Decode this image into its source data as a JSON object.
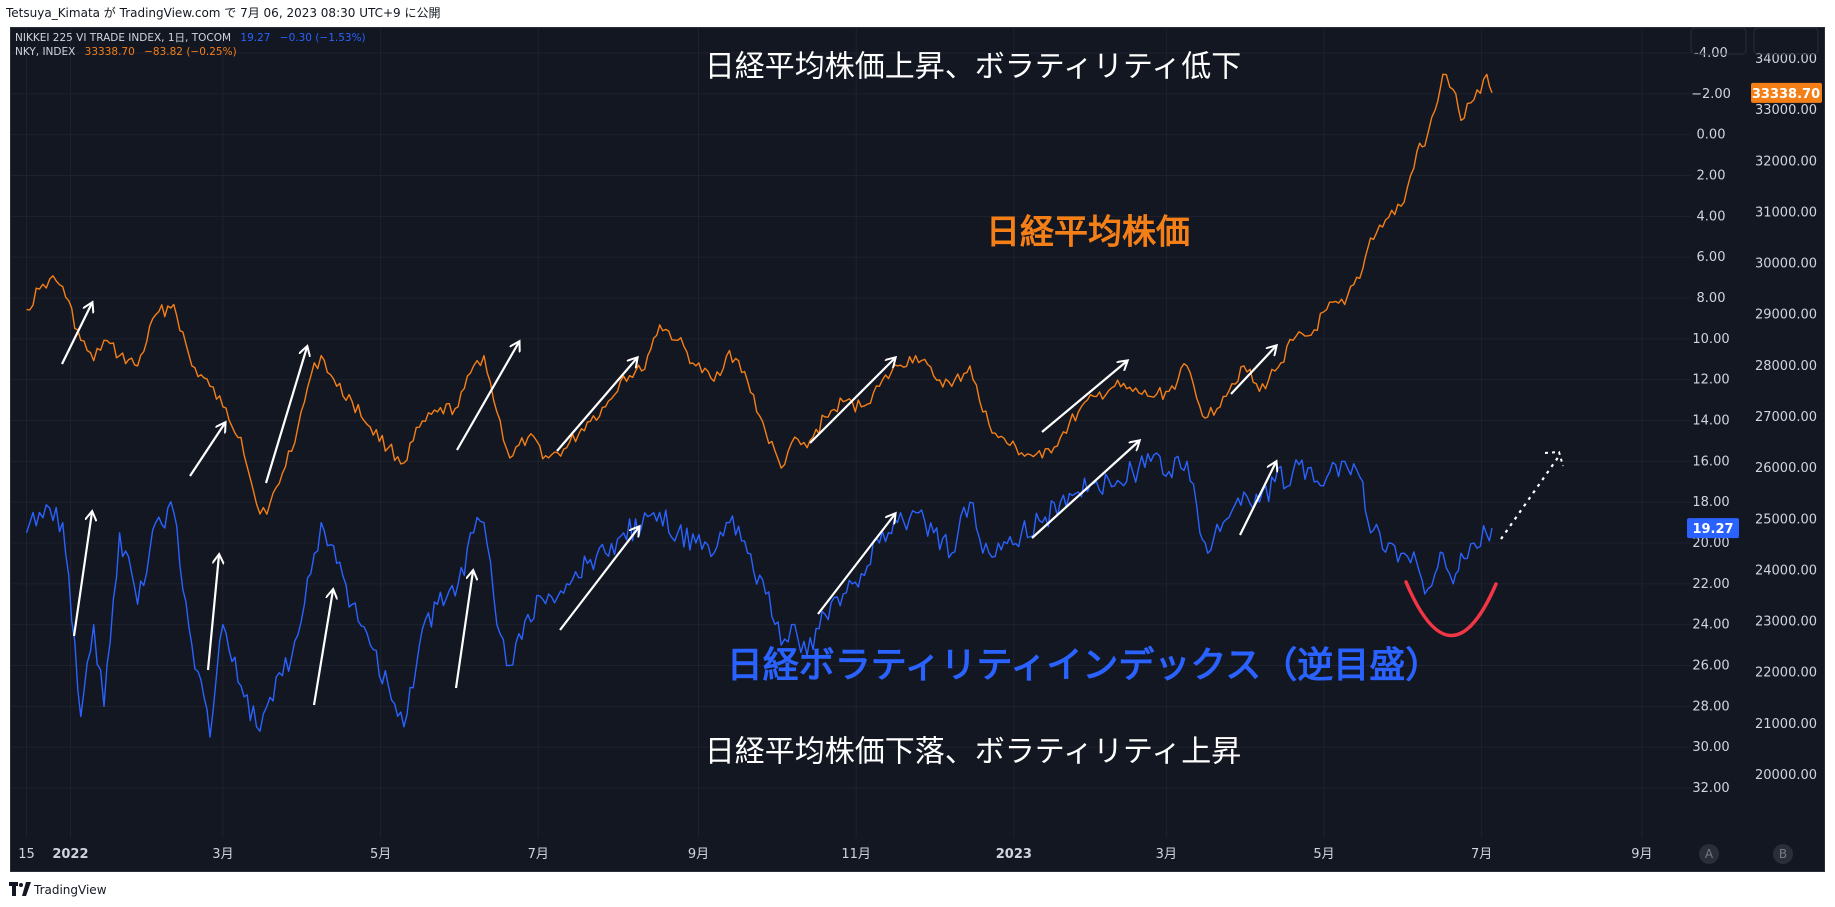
{
  "publish_bar": {
    "text": "Tetsuya_Kimata が TradingView.com で 7月 06, 2023 08:30 UTC+9 に公開"
  },
  "legend": {
    "vi": {
      "name": "NIKKEI 225 VI TRADE INDEX, 1日, TOCOM",
      "value": "19.27",
      "change": "−0.30 (−1.53%)",
      "color": "#2962ff"
    },
    "nky": {
      "name": "NKY, INDEX",
      "value": "33338.70",
      "change": "−83.82 (−0.25%)",
      "color": "#f57f17"
    }
  },
  "annotations": {
    "top": "日経平均株価上昇、ボラティリティ低下",
    "nikkei_label": "日経平均株価",
    "vi_label": "日経ボラティリティインデックス（逆目盛）",
    "bottom": "日経平均株価下落、ボラティリティ上昇"
  },
  "footer": {
    "brand": "TradingView",
    "logo": "tradingview-logo-icon"
  },
  "ab_buttons": [
    "A",
    "B"
  ],
  "colors": {
    "background": "#131722",
    "grid": "#1e222d",
    "nky": "#f57f17",
    "vi": "#2962ff",
    "arrow": "#ffffff",
    "u_curve": "#f23645"
  },
  "chart_data": {
    "type": "line",
    "x_ticks": [
      "15",
      "2022",
      "3月",
      "5月",
      "7月",
      "9月",
      "11月",
      "2023",
      "3月",
      "5月",
      "7月",
      "9月"
    ],
    "axis_vi": {
      "ticks": [
        "-4.00",
        "−2.00",
        "0.00",
        "2.00",
        "4.00",
        "6.00",
        "8.00",
        "10.00",
        "12.00",
        "14.00",
        "16.00",
        "18.00",
        "20.00",
        "22.00",
        "24.00",
        "26.00",
        "28.00",
        "30.00",
        "32.00"
      ],
      "range": [
        -4.0,
        32.0
      ],
      "inverted": true,
      "last_value": "19.27"
    },
    "axis_nky": {
      "ticks": [
        "34000.00",
        "33000.00",
        "32000.00",
        "31000.00",
        "30000.00",
        "29000.00",
        "28000.00",
        "27000.00",
        "26000.00",
        "25000.00",
        "24000.00",
        "23000.00",
        "22000.00",
        "21000.00",
        "20000.00"
      ],
      "range": [
        20000,
        34000
      ],
      "last_value": "33338.70"
    },
    "series": [
      {
        "name": "NKY, INDEX",
        "axis": "right",
        "color": "#f57f17",
        "points": [
          [
            "2021-12-15",
            29100
          ],
          [
            "2021-12-20",
            29500
          ],
          [
            "2021-12-24",
            29700
          ],
          [
            "2021-12-29",
            29550
          ],
          [
            "2022-01-05",
            28500
          ],
          [
            "2022-01-10",
            28100
          ],
          [
            "2022-01-14",
            28500
          ],
          [
            "2022-01-20",
            28200
          ],
          [
            "2022-01-27",
            28000
          ],
          [
            "2022-02-03",
            29000
          ],
          [
            "2022-02-10",
            29200
          ],
          [
            "2022-02-17",
            28000
          ],
          [
            "2022-02-24",
            27600
          ],
          [
            "2022-03-01",
            27200
          ],
          [
            "2022-03-08",
            26600
          ],
          [
            "2022-03-14",
            25300
          ],
          [
            "2022-03-18",
            25100
          ],
          [
            "2022-03-24",
            25900
          ],
          [
            "2022-03-30",
            26800
          ],
          [
            "2022-04-04",
            27800
          ],
          [
            "2022-04-08",
            28200
          ],
          [
            "2022-04-14",
            27600
          ],
          [
            "2022-04-20",
            27300
          ],
          [
            "2022-04-27",
            26800
          ],
          [
            "2022-05-04",
            26400
          ],
          [
            "2022-05-10",
            26100
          ],
          [
            "2022-05-16",
            26800
          ],
          [
            "2022-05-23",
            27100
          ],
          [
            "2022-05-31",
            27200
          ],
          [
            "2022-06-06",
            28000
          ],
          [
            "2022-06-10",
            28200
          ],
          [
            "2022-06-15",
            27100
          ],
          [
            "2022-06-20",
            26200
          ],
          [
            "2022-06-27",
            26600
          ],
          [
            "2022-07-05",
            26200
          ],
          [
            "2022-07-12",
            26400
          ],
          [
            "2022-07-20",
            26900
          ],
          [
            "2022-07-27",
            27200
          ],
          [
            "2022-08-03",
            27800
          ],
          [
            "2022-08-10",
            27900
          ],
          [
            "2022-08-17",
            28800
          ],
          [
            "2022-08-24",
            28500
          ],
          [
            "2022-08-31",
            28000
          ],
          [
            "2022-09-07",
            27700
          ],
          [
            "2022-09-13",
            28300
          ],
          [
            "2022-09-20",
            27700
          ],
          [
            "2022-09-27",
            26700
          ],
          [
            "2022-10-03",
            26000
          ],
          [
            "2022-10-07",
            26500
          ],
          [
            "2022-10-13",
            26400
          ],
          [
            "2022-10-20",
            27000
          ],
          [
            "2022-10-27",
            27300
          ],
          [
            "2022-11-03",
            27200
          ],
          [
            "2022-11-10",
            27600
          ],
          [
            "2022-11-17",
            28000
          ],
          [
            "2022-11-24",
            28200
          ],
          [
            "2022-12-01",
            27800
          ],
          [
            "2022-12-08",
            27600
          ],
          [
            "2022-12-15",
            28000
          ],
          [
            "2022-12-20",
            27100
          ],
          [
            "2022-12-26",
            26600
          ],
          [
            "2023-01-04",
            26300
          ],
          [
            "2023-01-12",
            26200
          ],
          [
            "2023-01-19",
            26600
          ],
          [
            "2023-01-26",
            27100
          ],
          [
            "2023-02-02",
            27400
          ],
          [
            "2023-02-09",
            27600
          ],
          [
            "2023-02-16",
            27500
          ],
          [
            "2023-02-23",
            27400
          ],
          [
            "2023-03-02",
            27500
          ],
          [
            "2023-03-09",
            28000
          ],
          [
            "2023-03-14",
            27200
          ],
          [
            "2023-03-17",
            27000
          ],
          [
            "2023-03-23",
            27400
          ],
          [
            "2023-03-31",
            28000
          ],
          [
            "2023-04-06",
            27500
          ],
          [
            "2023-04-12",
            27900
          ],
          [
            "2023-04-19",
            28500
          ],
          [
            "2023-04-26",
            28600
          ],
          [
            "2023-05-02",
            29100
          ],
          [
            "2023-05-09",
            29200
          ],
          [
            "2023-05-16",
            29900
          ],
          [
            "2023-05-19",
            30500
          ],
          [
            "2023-05-26",
            30900
          ],
          [
            "2023-06-01",
            31200
          ],
          [
            "2023-06-06",
            32200
          ],
          [
            "2023-06-09",
            32300
          ],
          [
            "2023-06-13",
            33000
          ],
          [
            "2023-06-16",
            33700
          ],
          [
            "2023-06-20",
            33400
          ],
          [
            "2023-06-23",
            32800
          ],
          [
            "2023-06-28",
            33200
          ],
          [
            "2023-07-03",
            33700
          ],
          [
            "2023-07-05",
            33338.7
          ]
        ]
      },
      {
        "name": "NIKKEI 225 VI TRADE INDEX, 1日, TOCOM",
        "axis": "left-inverted",
        "color": "#2962ff",
        "points": [
          [
            "2021-12-15",
            19.5
          ],
          [
            "2021-12-20",
            18.5
          ],
          [
            "2021-12-24",
            18.3
          ],
          [
            "2021-12-29",
            19.0
          ],
          [
            "2022-01-05",
            28.5
          ],
          [
            "2022-01-10",
            24.0
          ],
          [
            "2022-01-14",
            28.0
          ],
          [
            "2022-01-20",
            19.5
          ],
          [
            "2022-01-27",
            23.0
          ],
          [
            "2022-02-03",
            19.0
          ],
          [
            "2022-02-10",
            18.5
          ],
          [
            "2022-02-17",
            25.0
          ],
          [
            "2022-02-24",
            29.5
          ],
          [
            "2022-03-01",
            24.0
          ],
          [
            "2022-03-08",
            27.0
          ],
          [
            "2022-03-14",
            29.0
          ],
          [
            "2022-03-18",
            28.0
          ],
          [
            "2022-03-24",
            26.5
          ],
          [
            "2022-03-30",
            24.5
          ],
          [
            "2022-04-04",
            21.5
          ],
          [
            "2022-04-08",
            19.0
          ],
          [
            "2022-04-14",
            21.0
          ],
          [
            "2022-04-20",
            23.0
          ],
          [
            "2022-04-27",
            25.0
          ],
          [
            "2022-05-04",
            27.0
          ],
          [
            "2022-05-10",
            29.0
          ],
          [
            "2022-05-16",
            25.0
          ],
          [
            "2022-05-23",
            23.0
          ],
          [
            "2022-05-31",
            22.0
          ],
          [
            "2022-06-06",
            19.5
          ],
          [
            "2022-06-10",
            19.0
          ],
          [
            "2022-06-15",
            24.0
          ],
          [
            "2022-06-20",
            26.0
          ],
          [
            "2022-06-27",
            23.5
          ],
          [
            "2022-07-05",
            22.5
          ],
          [
            "2022-07-12",
            22.0
          ],
          [
            "2022-07-20",
            21.0
          ],
          [
            "2022-07-27",
            20.5
          ],
          [
            "2022-08-03",
            19.5
          ],
          [
            "2022-08-10",
            19.2
          ],
          [
            "2022-08-17",
            18.5
          ],
          [
            "2022-08-24",
            19.5
          ],
          [
            "2022-08-31",
            20.0
          ],
          [
            "2022-09-07",
            20.5
          ],
          [
            "2022-09-13",
            19.0
          ],
          [
            "2022-09-20",
            20.5
          ],
          [
            "2022-09-27",
            22.5
          ],
          [
            "2022-10-03",
            25.0
          ],
          [
            "2022-10-07",
            24.0
          ],
          [
            "2022-10-13",
            25.5
          ],
          [
            "2022-10-20",
            23.5
          ],
          [
            "2022-10-27",
            22.5
          ],
          [
            "2022-11-03",
            21.5
          ],
          [
            "2022-11-10",
            20.0
          ],
          [
            "2022-11-17",
            19.0
          ],
          [
            "2022-11-24",
            18.5
          ],
          [
            "2022-12-01",
            19.5
          ],
          [
            "2022-12-08",
            20.5
          ],
          [
            "2022-12-15",
            18.0
          ],
          [
            "2022-12-20",
            20.5
          ],
          [
            "2022-12-26",
            20.0
          ],
          [
            "2023-01-04",
            19.5
          ],
          [
            "2023-01-12",
            19.0
          ],
          [
            "2023-01-19",
            18.0
          ],
          [
            "2023-01-26",
            17.5
          ],
          [
            "2023-02-02",
            17.0
          ],
          [
            "2023-02-09",
            17.2
          ],
          [
            "2023-02-16",
            16.5
          ],
          [
            "2023-02-23",
            16.0
          ],
          [
            "2023-03-02",
            16.5
          ],
          [
            "2023-03-09",
            16.0
          ],
          [
            "2023-03-14",
            19.5
          ],
          [
            "2023-03-17",
            20.5
          ],
          [
            "2023-03-23",
            19.0
          ],
          [
            "2023-03-31",
            17.5
          ],
          [
            "2023-04-06",
            18.0
          ],
          [
            "2023-04-12",
            17.0
          ],
          [
            "2023-04-19",
            16.5
          ],
          [
            "2023-04-26",
            16.3
          ],
          [
            "2023-05-02",
            16.8
          ],
          [
            "2023-05-09",
            16.0
          ],
          [
            "2023-05-16",
            17.0
          ],
          [
            "2023-05-19",
            19.5
          ],
          [
            "2023-05-26",
            20.0
          ],
          [
            "2023-06-01",
            20.5
          ],
          [
            "2023-06-06",
            21.0
          ],
          [
            "2023-06-09",
            22.5
          ],
          [
            "2023-06-13",
            21.5
          ],
          [
            "2023-06-16",
            20.5
          ],
          [
            "2023-06-20",
            22.0
          ],
          [
            "2023-06-23",
            20.5
          ],
          [
            "2023-06-28",
            20.0
          ],
          [
            "2023-07-03",
            19.6
          ],
          [
            "2023-07-05",
            19.27
          ]
        ]
      }
    ]
  }
}
